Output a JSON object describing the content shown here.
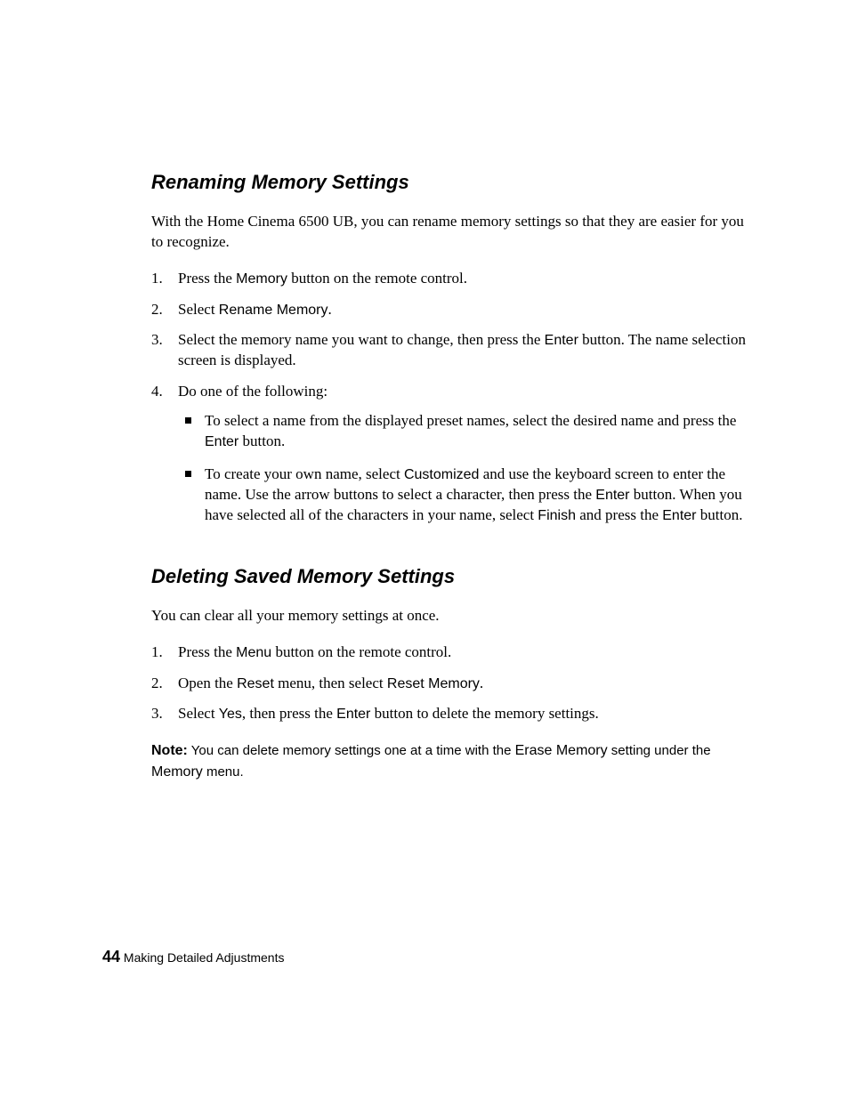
{
  "section1": {
    "heading": "Renaming Memory Settings",
    "intro_parts": [
      "With the Home Cinema 6500 UB, you can rename memory settings so that they are easier for you to recognize."
    ],
    "steps": {
      "s1": {
        "pre": "Press the ",
        "btn": "Memory",
        "post": " button on the remote control."
      },
      "s2": {
        "pre": "Select ",
        "btn": "Rename Memory",
        "post": "."
      },
      "s3": {
        "pre": "Select the memory name you want to change, then press the ",
        "btn": "Enter",
        "post": " button. The name selection screen is displayed."
      },
      "s4": {
        "text": "Do one of the following:",
        "b1": {
          "pre": "To select a name from the displayed preset names, select the desired name and press the ",
          "btn": "Enter",
          "post": " button."
        },
        "b2": {
          "pre": "To create your own name, select ",
          "btn1": "Customized",
          "mid1": " and use the keyboard screen to enter the name. Use the arrow buttons to select a character, then press the ",
          "btn2": "Enter",
          "mid2": " button. When you have selected all of the characters in your name, select ",
          "btn3": "Finish",
          "mid3": " and press the ",
          "btn4": "Enter",
          "post": " button."
        }
      }
    }
  },
  "section2": {
    "heading": "Deleting Saved Memory Settings",
    "intro": "You can clear all your memory settings at once.",
    "steps": {
      "s1": {
        "pre": "Press the ",
        "btn": "Menu",
        "post": " button on the remote control."
      },
      "s2": {
        "pre": "Open the ",
        "btn1": "Reset",
        "mid": " menu, then select ",
        "btn2": "Reset Memory",
        "post": "."
      },
      "s3": {
        "pre": "Select ",
        "btn1": "Yes",
        "mid": ", then press the ",
        "btn2": "Enter",
        "post": " button to delete the memory settings."
      }
    },
    "note": {
      "label": "Note:",
      "pre": " You can delete memory settings one at a time with the ",
      "btn1": "Erase Memory",
      "mid": " setting under the ",
      "btn2": "Memory",
      "post": " menu."
    }
  },
  "footer": {
    "page": "44",
    "chapter": "Making Detailed Adjustments"
  }
}
